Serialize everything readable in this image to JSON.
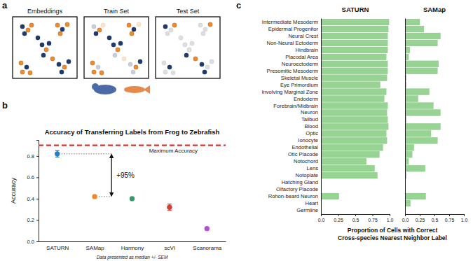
{
  "panel_labels": [
    "a",
    "b",
    "c"
  ],
  "diagram": {
    "titles": [
      "Embeddings",
      "Train Set",
      "Test Set"
    ]
  },
  "chart_data": [
    {
      "type": "scatter",
      "title": "Accuracy of Transferring Labels from Frog to Zebrafish",
      "ylabel": "Accuracy",
      "categories": [
        "SATURN",
        "SAMap",
        "Harmony",
        "scVI",
        "Scanorama"
      ],
      "values": [
        0.82,
        0.42,
        0.4,
        0.32,
        0.12
      ],
      "errors": [
        0.03,
        0.01,
        0.005,
        0.03,
        0.005
      ],
      "colors": [
        "#2a7bbf",
        "#f0892a",
        "#2f9d6a",
        "#cf3f36",
        "#b44fd6"
      ],
      "marker": "circle",
      "ylim": [
        0,
        0.95
      ],
      "yticks": [
        {
          "value": 0,
          "label": "0.0"
        },
        0.2,
        0.4,
        0.6,
        0.8
      ],
      "reference_line": {
        "value": 0.9,
        "label": "Maximum Accuracy",
        "color": "#d9302b"
      },
      "annotations": [
        {
          "text": "+95%",
          "from": 0.42,
          "to": 0.82
        },
        {
          "text": "Data presented as median +/- SEM"
        }
      ]
    },
    {
      "type": "bar",
      "orientation": "horizontal",
      "title": "SATURN",
      "categories": [
        "Intermediate Mesoderm",
        "Epidermal Progenitor",
        "Neural Crest",
        "Non-Neural Ectoderm",
        "Hindbrain",
        "Placodal Area",
        "Neuroectoderm",
        "Presomitic Mesoderm",
        "Skeletal Muscle",
        "Eye Primordium",
        "Involving Marginal Zone",
        "Endoderm",
        "Forebrain/Midbrain",
        "Neuron",
        "Tailbud",
        "Blood",
        "Optic",
        "Ionocyte",
        "Endothelial",
        "Otic Placode",
        "Notochord",
        "Lens",
        "Notoplate",
        "Hatching Gland",
        "Olfactory Placode",
        "Rohon-beard Neuron",
        "Heart",
        "Germline"
      ],
      "values": [
        0.99,
        0.98,
        0.97,
        0.97,
        0.97,
        0.95,
        0.97,
        0.97,
        0.96,
        0.86,
        0.95,
        0.92,
        0.97,
        0.96,
        0.97,
        0.98,
        0.95,
        0.96,
        0.9,
        0.85,
        0.66,
        0.78,
        0.82,
        0,
        0,
        0.26,
        0,
        0
      ],
      "color": "#97d493",
      "xlim": [
        0,
        1
      ],
      "xticks": [
        {
          "value": 0,
          "label": "0.0"
        },
        0.25,
        0.5,
        0.75,
        {
          "value": 1,
          "label": "1.0"
        }
      ],
      "xlabel": [
        "Proportion of Cells with Correct",
        "Cross-species Nearest Neighbor Label"
      ]
    },
    {
      "type": "bar",
      "orientation": "horizontal",
      "title": "SAMap",
      "categories": [
        "Intermediate Mesoderm",
        "Epidermal Progenitor",
        "Neural Crest",
        "Non-Neural Ectoderm",
        "Hindbrain",
        "Placodal Area",
        "Neuroectoderm",
        "Presomitic Mesoderm",
        "Skeletal Muscle",
        "Eye Primordium",
        "Involving Marginal Zone",
        "Endoderm",
        "Forebrain/Midbrain",
        "Neuron",
        "Tailbud",
        "Blood",
        "Optic",
        "Ionocyte",
        "Endothelial",
        "Otic Placode",
        "Notochord",
        "Lens",
        "Notoplate",
        "Hatching Gland",
        "Olfactory Placode",
        "Rohon-beard Neuron",
        "Heart",
        "Germline"
      ],
      "values": [
        0.25,
        0.32,
        0.6,
        0.55,
        0.08,
        0.06,
        0.57,
        0.55,
        0.02,
        0.02,
        0.41,
        0.22,
        0.48,
        0.6,
        0.02,
        0.6,
        0.44,
        0.55,
        0.15,
        0.12,
        0.06,
        0.34,
        0.02,
        0,
        0,
        0.35,
        0.09,
        0
      ],
      "color": "#97d493",
      "tick_labels": "x",
      "xlim": [
        0,
        1
      ],
      "xticks": [
        {
          "value": 0,
          "label": "0.0"
        },
        0.25,
        0.5,
        0.75,
        {
          "value": 1,
          "label": "1.0"
        }
      ]
    }
  ]
}
